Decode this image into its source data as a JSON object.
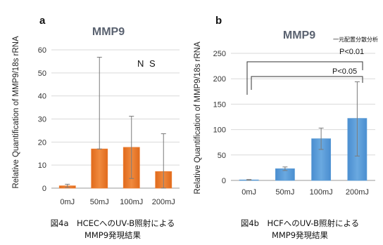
{
  "chart_data": [
    {
      "type": "bar",
      "panel": "a",
      "title": "MMP9",
      "ylabel": "Relative Quantification of MMP9/18s rRNA",
      "categories": [
        "0mJ",
        "50mJ",
        "100mJ",
        "200mJ"
      ],
      "values": [
        1,
        17,
        17.7,
        7.2
      ],
      "error_upper": [
        1.7,
        56.8,
        31.2,
        23.6
      ],
      "error_lower": [
        0.3,
        17,
        4.2,
        0
      ],
      "ylim": [
        0,
        60
      ],
      "yticks": [
        "0",
        "10",
        "20",
        "30",
        "40",
        "50",
        "60"
      ],
      "grid": true,
      "annotation": "N S",
      "caption_line1": "図4a　HCECへのUV-B照射による",
      "caption_line2": "MMP9発現結果",
      "color": "#ed7d31"
    },
    {
      "type": "bar",
      "panel": "b",
      "title": "MMP9",
      "ylabel": "Relative Quantification of MMP9/18s rRNA",
      "categories": [
        "0mJ",
        "50mJ",
        "100mJ",
        "200mJ"
      ],
      "values": [
        1,
        23,
        82,
        122
      ],
      "error_upper": [
        1.8,
        26.5,
        103,
        194
      ],
      "error_lower": [
        0.4,
        19.5,
        61,
        48
      ],
      "ylim": [
        0,
        250
      ],
      "yticks": [
        "0",
        "50",
        "100",
        "150",
        "200",
        "250"
      ],
      "grid": true,
      "annotation_test": "一元配置分散分析",
      "significance": [
        "P<0.01",
        "P<0.05"
      ],
      "caption_line1": "図4b　HCFへのUV-B照射による",
      "caption_line2": "MMP9発現結果",
      "color": "#5b9bd5"
    }
  ]
}
